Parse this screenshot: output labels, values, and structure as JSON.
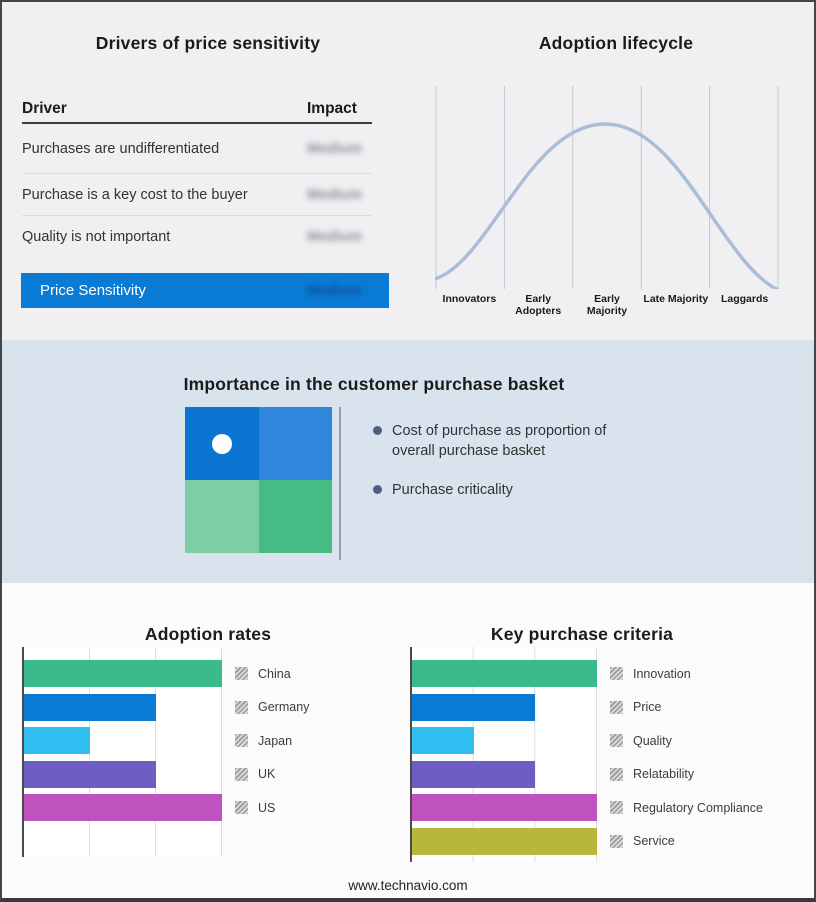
{
  "drivers": {
    "title": "Drivers of price sensitivity",
    "columns": [
      "Driver",
      "Impact"
    ],
    "rows": [
      {
        "driver": "Purchases are undifferentiated",
        "impact": "Medium"
      },
      {
        "driver": "Purchase is a key cost to the buyer",
        "impact": "Medium"
      },
      {
        "driver": "Quality is not important",
        "impact": "Medium"
      }
    ],
    "summary_label": "Price Sensitivity",
    "summary_impact": "Medium"
  },
  "basket": {
    "title": "Importance in the customer purchase basket",
    "bullets": [
      "Cost of purchase as proportion of overall purchase basket",
      "Purchase criticality"
    ]
  },
  "chart_data": [
    {
      "id": "adoption-rates",
      "type": "bar",
      "orientation": "horizontal",
      "title": "Adoption rates",
      "categories": [
        "China",
        "Germany",
        "Japan",
        "UK",
        "US"
      ],
      "values": [
        3,
        2,
        1,
        2,
        3
      ],
      "xlim": [
        0,
        3
      ],
      "gridlines": 3,
      "grid": true,
      "legend_position": "right",
      "colors": [
        "#3cba8b",
        "#0a7bd4",
        "#30bff0",
        "#6e5ec4",
        "#c052bf"
      ]
    },
    {
      "id": "key-purchase-criteria",
      "type": "bar",
      "orientation": "horizontal",
      "title": "Key purchase criteria",
      "categories": [
        "Innovation",
        "Price",
        "Quality",
        "Relatability",
        "Regulatory Compliance",
        "Service"
      ],
      "values": [
        3,
        2,
        1,
        2,
        3,
        3
      ],
      "xlim": [
        0,
        3
      ],
      "gridlines": 3,
      "grid": true,
      "legend_position": "right",
      "colors": [
        "#3cba8b",
        "#0a7bd4",
        "#30bff0",
        "#6e5ec4",
        "#c052bf",
        "#b7b83b"
      ]
    },
    {
      "id": "adoption-lifecycle",
      "type": "line",
      "shape": "bell-curve",
      "title": "Adoption lifecycle",
      "categories": [
        "Innovators",
        "Early Adopters",
        "Early Majority",
        "Late Majority",
        "Laggards"
      ],
      "x_gridlines": 6,
      "line_color": "#a9bed6"
    }
  ],
  "colors": {
    "accent_blue": "#0a7bd4",
    "top_band": "#f0eff2",
    "mid_band": "#d8e3ee",
    "bottom_band": "#fbfbfc",
    "curve": "#a9bed6",
    "bullet": "#4c5f80",
    "quadrant_top_left": "#0b76d1",
    "quadrant_top_right": "#2f86da",
    "quadrant_bottom_left": "#7ccfa2",
    "quadrant_bottom_right": "#46bb84"
  },
  "footer": {
    "url": "www.technavio.com"
  }
}
